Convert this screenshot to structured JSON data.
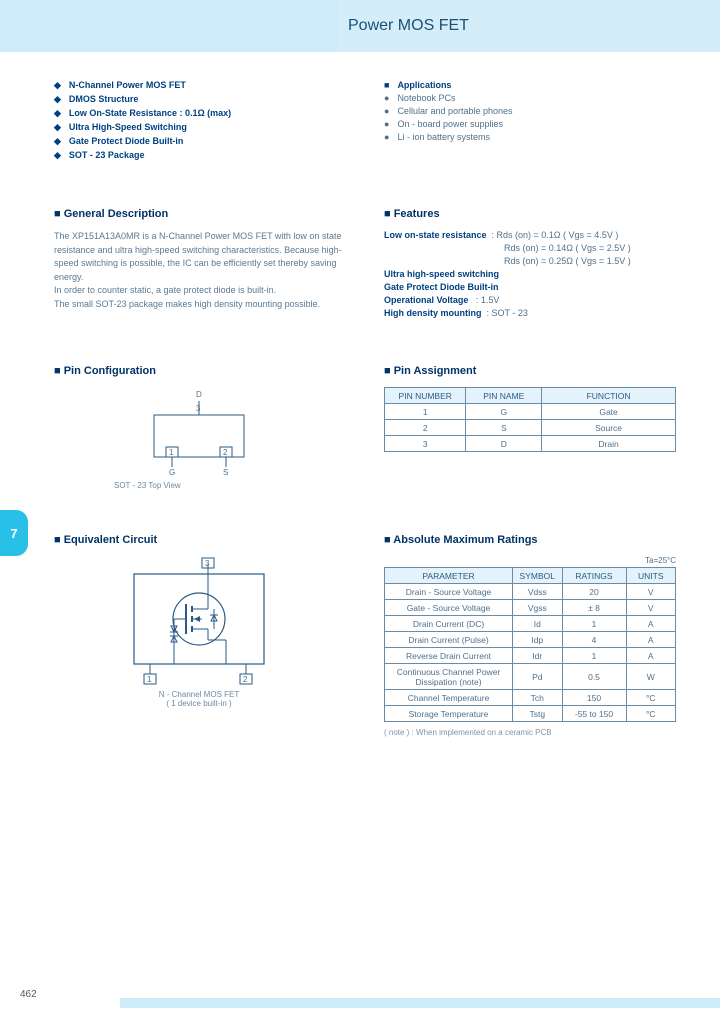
{
  "page": {
    "title": "Power MOS FET",
    "page_number": "462",
    "tab_number": "7",
    "colors": {
      "header_bg": "#cdebf9",
      "accent": "#29c0e7",
      "text_primary": "#003366",
      "text_body": "#50708a",
      "table_header_bg": "#e4f2fb",
      "border": "#6b8aa3"
    }
  },
  "key_features": [
    "N-Channel Power MOS FET",
    "DMOS Structure",
    "Low On-State Resistance :  0.1Ω (max)",
    "Ultra High-Speed Switching",
    "Gate Protect Diode Built-in",
    "SOT - 23 Package"
  ],
  "applications": {
    "header": "Applications",
    "items": [
      "Notebook PCs",
      "Cellular and portable phones",
      "On - board power supplies",
      "Li - ion battery systems"
    ]
  },
  "general_description": {
    "title": "General Description",
    "text": "The XP151A13A0MR is a N-Channel Power MOS FET with low on state resistance and ultra high-speed switching characteristics. Because high-speed switching is possible, the IC can be efficiently set thereby saving energy.\nIn order to counter static, a gate protect diode is built-in.\nThe small SOT-23 package makes high density mounting possible."
  },
  "features_detail": {
    "title": "Features",
    "low_on_label": "Low on-state resistance",
    "rds_lines": [
      ": Rds (on) = 0.1Ω   ( Vgs = 4.5V )",
      "Rds (on) = 0.14Ω  ( Vgs = 2.5V )",
      "Rds (on) = 0.25Ω  ( Vgs = 1.5V )"
    ],
    "lines": [
      "Ultra high-speed switching",
      "Gate Protect Diode Built-in"
    ],
    "op_voltage_label": "Operational Voltage",
    "op_voltage_value": ":    1.5V",
    "mounting_label": "High density mounting",
    "mounting_value": ": SOT - 23"
  },
  "pin_config": {
    "title": "Pin Configuration",
    "caption": "SOT - 23  Top View",
    "pins": {
      "d": "D",
      "d_num": "3",
      "g": "G",
      "g_num": "1",
      "s": "S",
      "s_num": "2"
    }
  },
  "pin_assignment": {
    "title": "Pin Assignment",
    "columns": [
      "PIN NUMBER",
      "PIN NAME",
      "FUNCTION"
    ],
    "rows": [
      [
        "1",
        "G",
        "Gate"
      ],
      [
        "2",
        "S",
        "Source"
      ],
      [
        "3",
        "D",
        "Drain"
      ]
    ]
  },
  "equivalent_circuit": {
    "title": "Equivalent Circuit",
    "caption": "N - Channel MOS FET\n( 1 device built-in )",
    "labels": {
      "p1": "1",
      "p2": "2",
      "p3": "3"
    }
  },
  "abs_max": {
    "title": "Absolute Maximum Ratings",
    "ta_note": "Ta=25°C",
    "columns": [
      "PARAMETER",
      "SYMBOL",
      "RATINGS",
      "UNITS"
    ],
    "rows": [
      [
        "Drain - Source Voltage",
        "Vdss",
        "20",
        "V"
      ],
      [
        "Gate - Source Voltage",
        "Vgss",
        "± 8",
        "V"
      ],
      [
        "Drain Current  (DC)",
        "Id",
        "1",
        "A"
      ],
      [
        "Drain Current  (Pulse)",
        "Idp",
        "4",
        "A"
      ],
      [
        "Reverse Drain Current",
        "Idr",
        "1",
        "A"
      ],
      [
        "Continuous Channel Power Dissipation  (note)",
        "Pd",
        "0.5",
        "W"
      ],
      [
        "Channel Temperature",
        "Tch",
        "150",
        "°C"
      ],
      [
        "Storage Temperature",
        "Tstg",
        "-55 to 150",
        "°C"
      ]
    ],
    "footnote": "( note )  : When implemented on a ceramic PCB"
  }
}
